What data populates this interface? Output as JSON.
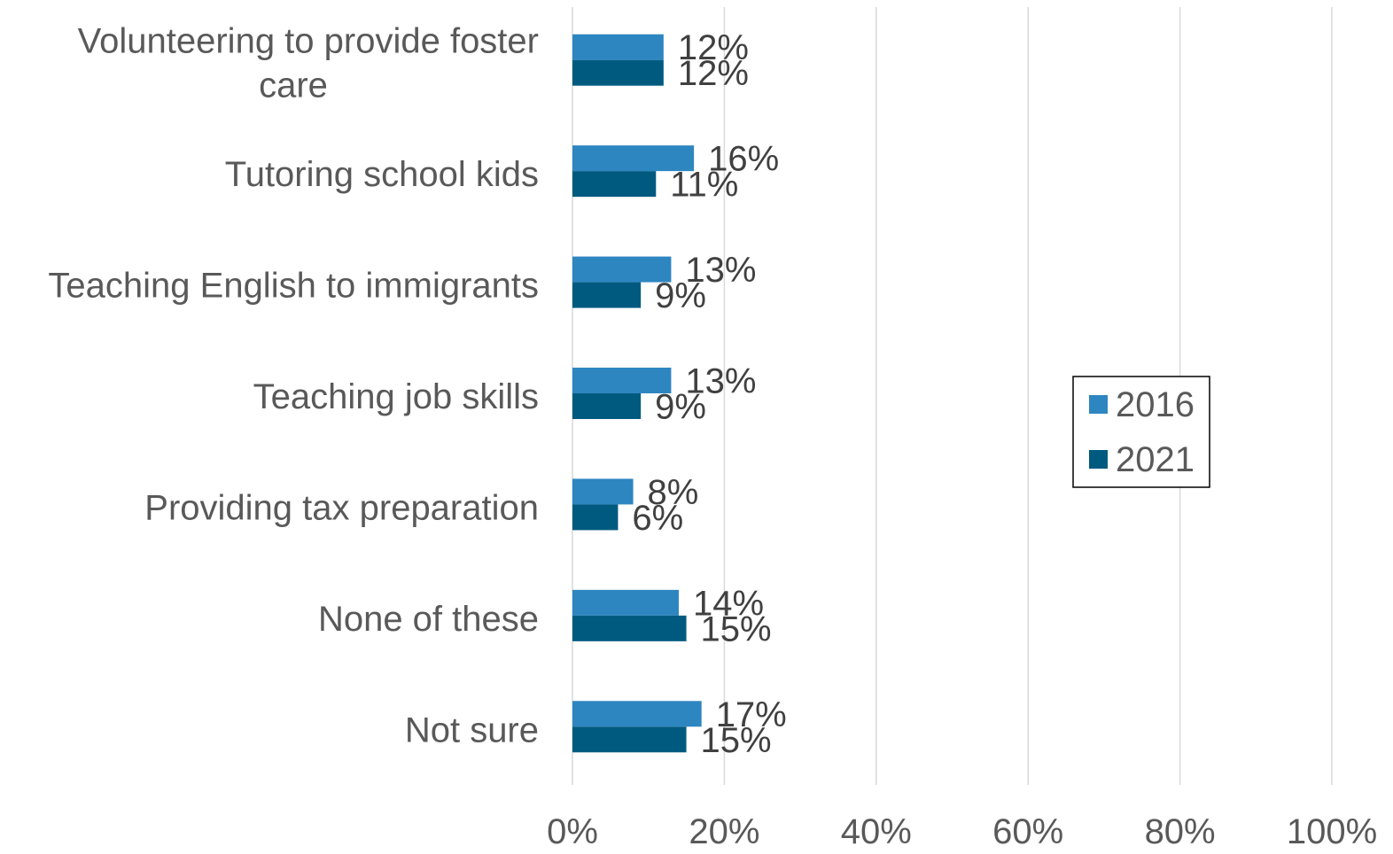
{
  "chart_data": {
    "type": "bar",
    "orientation": "horizontal",
    "title": "",
    "xlabel": "",
    "ylabel": "",
    "categories": [
      "Volunteering to provide foster care",
      "Tutoring school kids",
      "Teaching English to immigrants",
      "Teaching job skills",
      "Providing tax preparation",
      "None of these",
      "Not sure"
    ],
    "series": [
      {
        "name": "2016",
        "color": "#2e86c1",
        "values": [
          12,
          16,
          13,
          13,
          8,
          14,
          17
        ],
        "labels": [
          "12%",
          "16%",
          "13%",
          "13%",
          "8%",
          "14%",
          "17%"
        ]
      },
      {
        "name": "2021",
        "color": "#005a80",
        "values": [
          12,
          11,
          9,
          9,
          6,
          15,
          15
        ],
        "labels": [
          "12%",
          "11%",
          "9%",
          "9%",
          "6%",
          "15%",
          "15%"
        ]
      }
    ],
    "xlim": [
      0,
      100
    ],
    "xticks": [
      0,
      20,
      40,
      60,
      80,
      100
    ],
    "xtick_labels": [
      "0%",
      "20%",
      "40%",
      "60%",
      "80%",
      "100%"
    ],
    "grid": true,
    "legend_position": "right",
    "colors": {
      "gridline": "#d9d9d9",
      "text": "#595959",
      "label_text": "#404040"
    }
  }
}
